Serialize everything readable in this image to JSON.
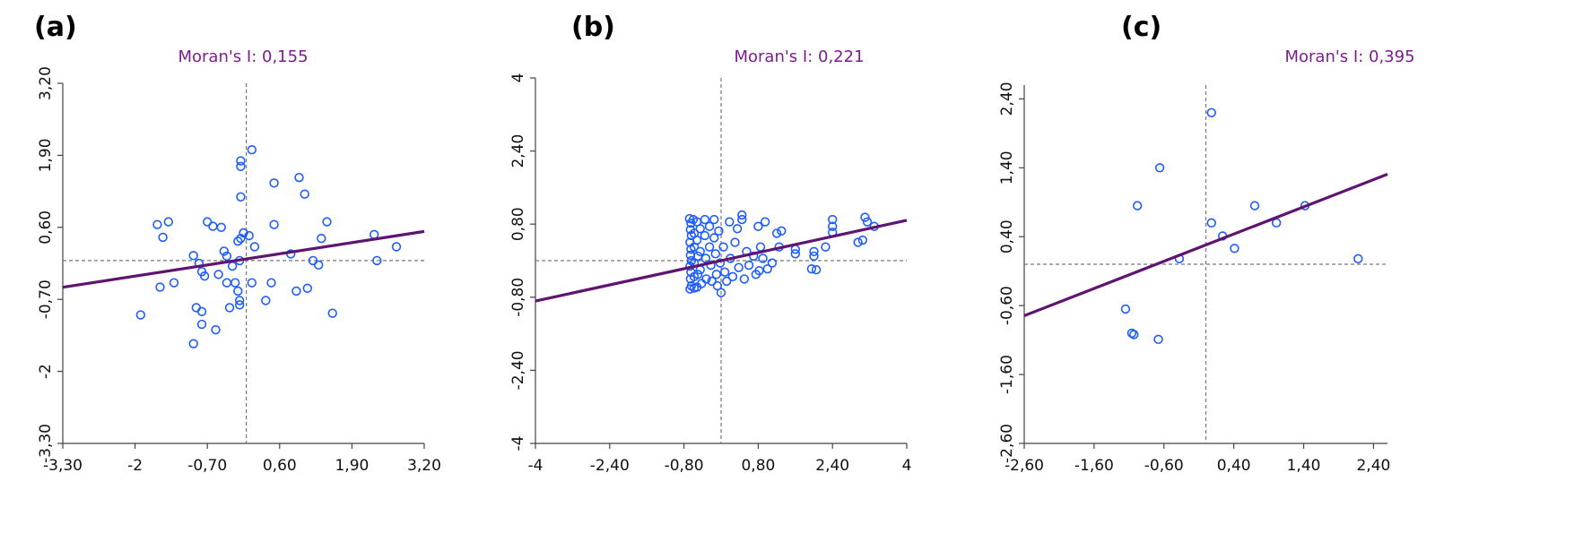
{
  "colors": {
    "point": "#1e5cff",
    "regression": "#5e1470",
    "title": "#7b1f8c",
    "reference_lines": "#777777",
    "axis": "#444444"
  },
  "chart_data": [
    {
      "type": "scatter",
      "panel_label": "(a)",
      "title": "Moran's I: 0,155",
      "moran_i": 0.155,
      "xlim": [
        -3.3,
        3.2
      ],
      "ylim": [
        -3.3,
        3.2
      ],
      "x_ticks": [
        "-3,30",
        "-2",
        "-0,70",
        "0,60",
        "1,90",
        "3,20"
      ],
      "y_ticks": [
        "-3,30",
        "-2",
        "-0,70",
        "0,60",
        "1,90",
        "3,20"
      ],
      "x_tick_values": [
        -3.3,
        -2,
        -0.7,
        0.6,
        1.9,
        3.2
      ],
      "y_tick_values": [
        -3.3,
        -2,
        -0.7,
        0.6,
        1.9,
        3.2
      ],
      "reference_lines": {
        "x": 0,
        "y": 0
      },
      "regression": {
        "intercept": 0.03,
        "slope": 0.155
      },
      "points": [
        [
          -1.9,
          -0.98
        ],
        [
          -1.6,
          0.65
        ],
        [
          -1.4,
          0.7
        ],
        [
          -1.5,
          0.42
        ],
        [
          -1.55,
          -0.48
        ],
        [
          -1.3,
          -0.4
        ],
        [
          -0.95,
          0.09
        ],
        [
          -0.85,
          -0.05
        ],
        [
          -0.8,
          -0.2
        ],
        [
          -0.75,
          -0.28
        ],
        [
          -0.9,
          -0.85
        ],
        [
          -0.8,
          -0.92
        ],
        [
          -0.8,
          -1.15
        ],
        [
          -0.95,
          -1.5
        ],
        [
          -0.7,
          0.7
        ],
        [
          -0.6,
          0.62
        ],
        [
          -0.55,
          -1.25
        ],
        [
          -0.45,
          0.6
        ],
        [
          -0.4,
          0.17
        ],
        [
          -0.35,
          0.08
        ],
        [
          -0.5,
          -0.25
        ],
        [
          -0.35,
          -0.4
        ],
        [
          -0.2,
          -0.4
        ],
        [
          -0.25,
          -0.1
        ],
        [
          -0.1,
          0.4
        ],
        [
          -0.1,
          1.7
        ],
        [
          -0.1,
          1.8
        ],
        [
          -0.1,
          1.15
        ],
        [
          0.05,
          0.45
        ],
        [
          0.1,
          2.0
        ],
        [
          -0.15,
          -0.55
        ],
        [
          -0.3,
          -0.85
        ],
        [
          -0.12,
          -0.8
        ],
        [
          -0.12,
          -0.72
        ],
        [
          0.1,
          -0.4
        ],
        [
          0.15,
          0.25
        ],
        [
          -0.15,
          0.35
        ],
        [
          -0.05,
          0.5
        ],
        [
          -0.12,
          0.0
        ],
        [
          0.35,
          -0.72
        ],
        [
          0.45,
          -0.4
        ],
        [
          0.5,
          1.4
        ],
        [
          0.5,
          0.65
        ],
        [
          0.8,
          0.12
        ],
        [
          0.9,
          -0.55
        ],
        [
          0.95,
          1.5
        ],
        [
          1.05,
          1.2
        ],
        [
          1.1,
          -0.5
        ],
        [
          1.2,
          0.0
        ],
        [
          1.3,
          -0.08
        ],
        [
          1.35,
          0.4
        ],
        [
          1.45,
          0.7
        ],
        [
          1.55,
          -0.95
        ],
        [
          2.3,
          0.47
        ],
        [
          2.35,
          0.0
        ],
        [
          2.7,
          0.25
        ]
      ]
    },
    {
      "type": "scatter",
      "panel_label": "(b)",
      "title": "Moran's I: 0,221",
      "moran_i": 0.221,
      "xlim": [
        -4,
        4
      ],
      "ylim": [
        -4,
        4
      ],
      "x_ticks": [
        "-4",
        "-2,40",
        "-0,80",
        "0,80",
        "2,40",
        "4"
      ],
      "y_ticks": [
        "-4",
        "-2,40",
        "-0,80",
        "0,80",
        "2,40",
        "4"
      ],
      "x_tick_values": [
        -4,
        -2.4,
        -0.8,
        0.8,
        2.4,
        4
      ],
      "y_tick_values": [
        -4,
        -2.4,
        -0.8,
        0.8,
        2.4,
        4
      ],
      "reference_lines": {
        "x": 0,
        "y": 0
      },
      "regression": {
        "intercept": 0.0,
        "slope": 0.221
      },
      "points": [
        [
          -0.68,
          0.92
        ],
        [
          -0.65,
          0.82
        ],
        [
          -0.66,
          0.68
        ],
        [
          -0.64,
          0.55
        ],
        [
          -0.67,
          0.4
        ],
        [
          -0.65,
          0.25
        ],
        [
          -0.66,
          0.12
        ],
        [
          -0.64,
          0.0
        ],
        [
          -0.67,
          -0.12
        ],
        [
          -0.65,
          -0.25
        ],
        [
          -0.66,
          -0.4
        ],
        [
          -0.64,
          -0.55
        ],
        [
          -0.67,
          -0.62
        ],
        [
          -0.6,
          0.9
        ],
        [
          -0.58,
          0.6
        ],
        [
          -0.58,
          0.3
        ],
        [
          -0.58,
          -0.05
        ],
        [
          -0.58,
          -0.35
        ],
        [
          -0.58,
          -0.6
        ],
        [
          -0.52,
          0.85
        ],
        [
          -0.52,
          0.45
        ],
        [
          -0.5,
          0.1
        ],
        [
          -0.5,
          -0.3
        ],
        [
          -0.52,
          -0.58
        ],
        [
          -0.45,
          0.7
        ],
        [
          -0.45,
          0.2
        ],
        [
          -0.45,
          -0.2
        ],
        [
          -0.42,
          -0.5
        ],
        [
          -0.35,
          0.9
        ],
        [
          -0.35,
          0.55
        ],
        [
          -0.33,
          0.05
        ],
        [
          -0.32,
          -0.4
        ],
        [
          -0.25,
          0.75
        ],
        [
          -0.25,
          0.3
        ],
        [
          -0.22,
          -0.1
        ],
        [
          -0.2,
          -0.45
        ],
        [
          -0.15,
          0.9
        ],
        [
          -0.15,
          0.5
        ],
        [
          -0.12,
          0.15
        ],
        [
          -0.1,
          -0.3
        ],
        [
          -0.08,
          -0.55
        ],
        [
          -0.05,
          0.65
        ],
        [
          -0.02,
          -0.05
        ],
        [
          0.0,
          -0.7
        ],
        [
          0.05,
          0.3
        ],
        [
          0.08,
          -0.25
        ],
        [
          0.12,
          -0.45
        ],
        [
          0.18,
          0.85
        ],
        [
          0.2,
          0.05
        ],
        [
          0.25,
          -0.35
        ],
        [
          0.3,
          0.4
        ],
        [
          0.35,
          0.7
        ],
        [
          0.38,
          -0.15
        ],
        [
          0.45,
          1.0
        ],
        [
          0.45,
          0.9
        ],
        [
          0.5,
          -0.4
        ],
        [
          0.55,
          0.2
        ],
        [
          0.6,
          -0.1
        ],
        [
          0.7,
          0.1
        ],
        [
          0.75,
          -0.3
        ],
        [
          0.8,
          0.75
        ],
        [
          0.82,
          -0.22
        ],
        [
          0.85,
          0.3
        ],
        [
          0.9,
          0.05
        ],
        [
          0.95,
          0.85
        ],
        [
          1.0,
          -0.18
        ],
        [
          1.1,
          -0.05
        ],
        [
          1.2,
          0.6
        ],
        [
          1.25,
          0.3
        ],
        [
          1.3,
          0.65
        ],
        [
          1.6,
          0.15
        ],
        [
          1.6,
          0.25
        ],
        [
          1.95,
          -0.18
        ],
        [
          2.0,
          0.1
        ],
        [
          2.0,
          0.2
        ],
        [
          2.05,
          -0.2
        ],
        [
          2.25,
          0.3
        ],
        [
          2.4,
          0.9
        ],
        [
          2.4,
          0.75
        ],
        [
          2.4,
          0.62
        ],
        [
          2.95,
          0.4
        ],
        [
          3.05,
          0.45
        ],
        [
          3.1,
          0.95
        ],
        [
          3.15,
          0.85
        ],
        [
          3.3,
          0.75
        ]
      ]
    },
    {
      "type": "scatter",
      "panel_label": "(c)",
      "title": "Moran's I: 0,395",
      "moran_i": 0.395,
      "xlim": [
        -2.6,
        2.6
      ],
      "ylim": [
        -2.6,
        2.6
      ],
      "x_ticks": [
        "-2,60",
        "-1,60",
        "-0,60",
        "0,40",
        "1,40",
        "2,40"
      ],
      "y_ticks": [
        "-2,60",
        "-1,60",
        "-0,60",
        "0,40",
        "1,40",
        "2,40"
      ],
      "x_tick_values": [
        -2.6,
        -1.6,
        -0.6,
        0.4,
        1.4,
        2.4
      ],
      "y_tick_values": [
        -2.6,
        -1.6,
        -0.6,
        0.4,
        1.4,
        2.4
      ],
      "reference_lines": {
        "x": 0,
        "y": 0
      },
      "regression": {
        "intercept": 0.28,
        "slope": 0.395
      },
      "points": [
        [
          -1.15,
          -0.65
        ],
        [
          -1.06,
          -1.0
        ],
        [
          -1.03,
          -1.02
        ],
        [
          -0.98,
          0.85
        ],
        [
          -0.66,
          1.4
        ],
        [
          -0.68,
          -1.09
        ],
        [
          -0.38,
          0.08
        ],
        [
          0.08,
          2.2
        ],
        [
          0.08,
          0.6
        ],
        [
          0.24,
          0.41
        ],
        [
          0.41,
          0.23
        ],
        [
          0.7,
          0.85
        ],
        [
          1.01,
          0.6
        ],
        [
          1.42,
          0.85
        ],
        [
          2.18,
          0.08
        ]
      ]
    }
  ]
}
